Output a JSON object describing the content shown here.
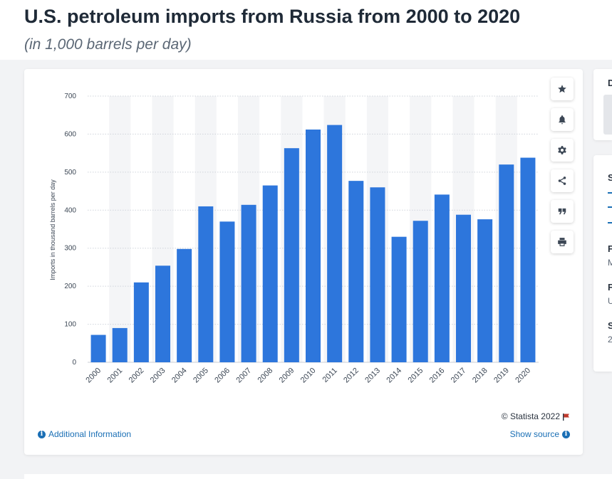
{
  "header": {
    "title": "U.S. petroleum imports from Russia from 2000 to 2020",
    "subtitle": "(in 1,000 barrels per day)"
  },
  "chart_data": {
    "type": "bar",
    "categories": [
      "2000",
      "2001",
      "2002",
      "2003",
      "2004",
      "2005",
      "2006",
      "2007",
      "2008",
      "2009",
      "2010",
      "2011",
      "2012",
      "2013",
      "2014",
      "2015",
      "2016",
      "2017",
      "2018",
      "2019",
      "2020"
    ],
    "values": [
      72,
      90,
      210,
      254,
      298,
      410,
      370,
      414,
      465,
      563,
      612,
      624,
      477,
      460,
      330,
      372,
      441,
      388,
      376,
      520,
      538
    ],
    "ylabel": "Imports in thousand barrels per day",
    "xlabel": "",
    "ylim": [
      0,
      700
    ],
    "yticks": [
      0,
      100,
      200,
      300,
      400,
      500,
      600,
      700
    ],
    "grid": true,
    "bar_color": "#2d76dc",
    "alt_band_color": "#f4f5f7"
  },
  "card": {
    "copyright": "© Statista 2022",
    "additional_info": "Additional Information",
    "show_source": "Show source"
  },
  "toolbar": {
    "icons": [
      "star-icon",
      "bell-icon",
      "gear-icon",
      "share-icon",
      "quote-icon",
      "print-icon"
    ]
  },
  "right_panel": {
    "letters": [
      "D",
      "S",
      "F",
      "M",
      "F",
      "U",
      "S",
      "2"
    ]
  },
  "colors": {
    "title": "#1f2a37",
    "link": "#1a6fb5",
    "icon": "#3c4755"
  }
}
